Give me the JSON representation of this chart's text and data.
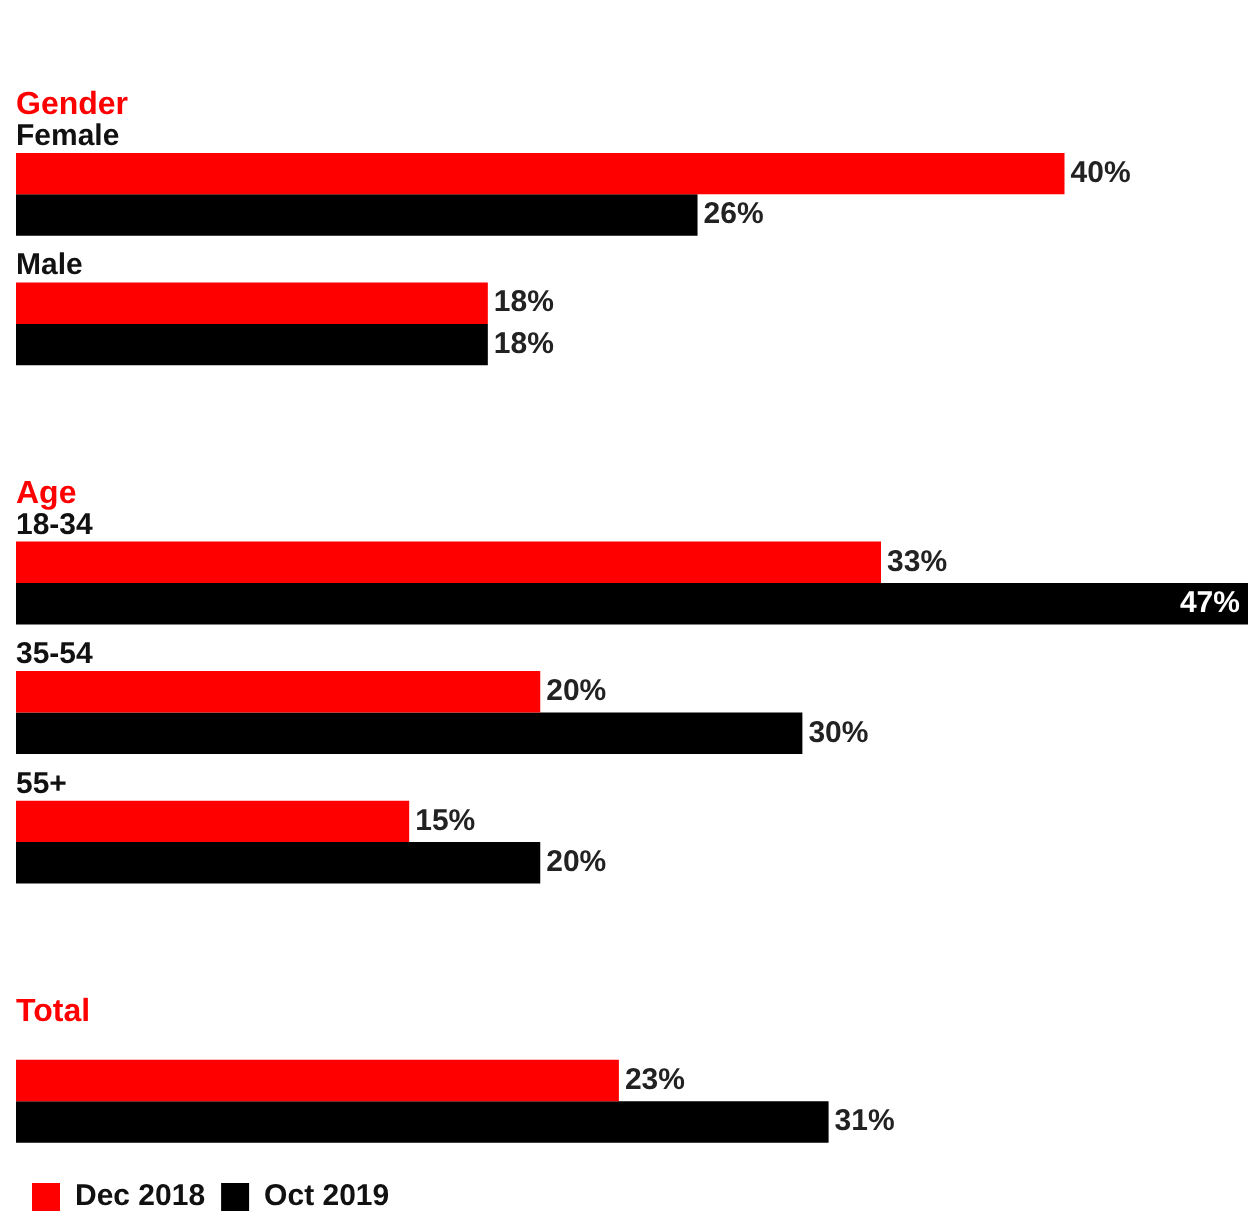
{
  "chart_data": {
    "type": "bar",
    "orientation": "horizontal",
    "categories": [
      "Gender",
      "Female",
      "Male",
      "Age",
      "18-34",
      "35-54",
      "55+",
      "Total",
      null
    ],
    "series": [
      {
        "name": "Dec 2018",
        "color": "#ff0000",
        "values": [
          null,
          40,
          18,
          null,
          33,
          20,
          15,
          null,
          23
        ],
        "value_labels": [
          null,
          "40%",
          "18%",
          null,
          "33%",
          "20%",
          "15%",
          null,
          "23%"
        ]
      },
      {
        "name": "Oct 2019",
        "color": "#000000",
        "values": [
          null,
          26,
          18,
          null,
          47,
          30,
          20,
          null,
          31
        ],
        "value_labels": [
          null,
          "26%",
          "18%",
          null,
          "47%",
          "30%",
          "20%",
          null,
          "31%"
        ]
      }
    ],
    "legend": "bottom left"
  }
}
